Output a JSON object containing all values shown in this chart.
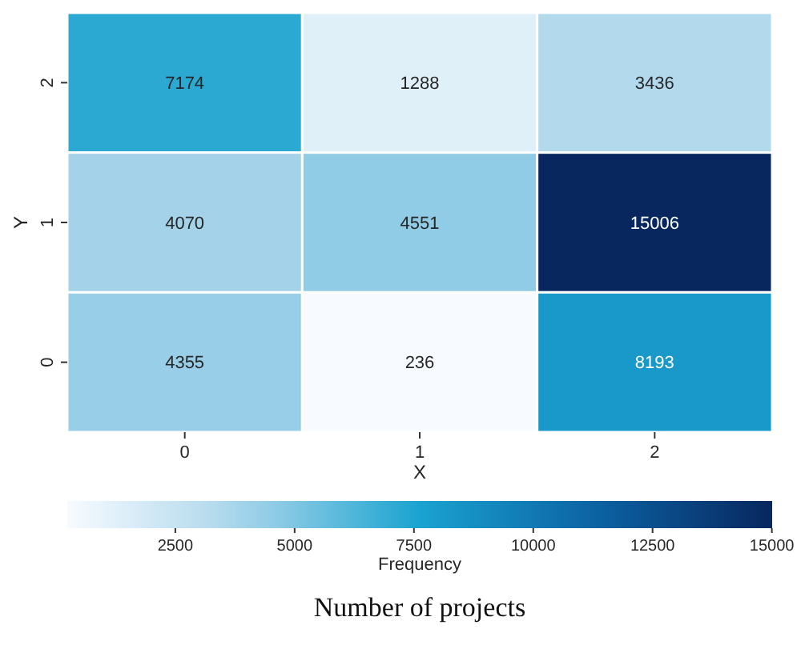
{
  "chart_data": {
    "type": "heatmap",
    "title": "Number of projects",
    "xlabel": "X",
    "ylabel": "Y",
    "clabel": "Frequency",
    "categories": [
      "0",
      "1",
      "2"
    ],
    "y_categories": [
      "2",
      "1",
      "0"
    ],
    "cells": [
      [
        7174,
        1288,
        3436
      ],
      [
        4070,
        4551,
        15006
      ],
      [
        4355,
        236,
        8193
      ]
    ],
    "clim": [
      236,
      15006
    ],
    "cticks": [
      2500,
      5000,
      7500,
      10000,
      12500,
      15000
    ],
    "data_labels": true
  }
}
